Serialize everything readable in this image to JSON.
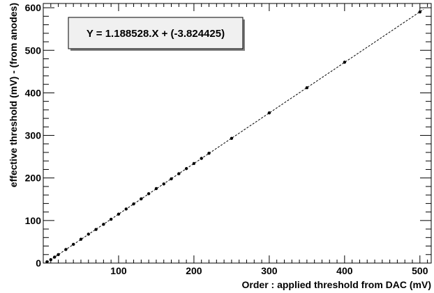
{
  "chart_data": {
    "type": "scatter",
    "title": "",
    "xlabel": "Order : applied threshold from DAC (mV)",
    "ylabel": "effective threshold (mV) - (from anodes)",
    "xlim": [
      0,
      515
    ],
    "ylim": [
      0,
      610
    ],
    "xticks": [
      100,
      200,
      300,
      400,
      500
    ],
    "yticks": [
      0,
      100,
      200,
      300,
      400,
      500,
      600
    ],
    "grid": false,
    "fit": {
      "label": "Y = 1.188528.X + (-3.824425)",
      "slope": 1.188528,
      "intercept": -3.824425
    },
    "series": [
      {
        "x": [
          5,
          10,
          15,
          20,
          30,
          40,
          50,
          60,
          70,
          80,
          90,
          100,
          110,
          120,
          130,
          140,
          150,
          160,
          170,
          180,
          190,
          200,
          210,
          220,
          250,
          300,
          350,
          400,
          500
        ],
        "y": [
          3,
          8,
          14,
          20,
          32,
          44,
          56,
          68,
          79,
          91,
          103,
          115,
          127,
          139,
          151,
          163,
          175,
          186,
          198,
          210,
          222,
          234,
          246,
          258,
          293,
          353,
          412,
          472,
          590
        ]
      }
    ]
  }
}
